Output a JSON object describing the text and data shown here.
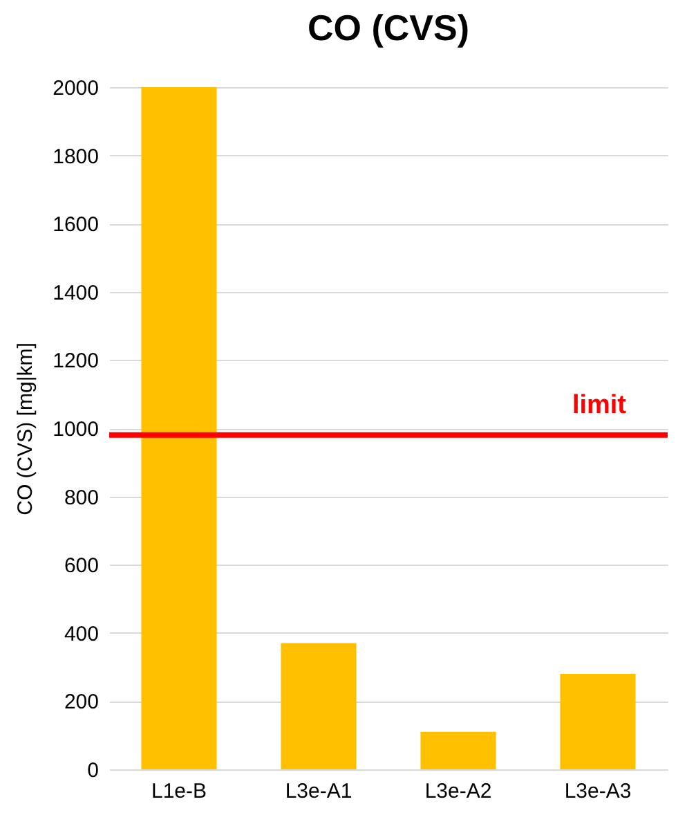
{
  "chart_data": {
    "type": "bar",
    "title": "CO (CVS)",
    "ylabel": "CO (CVS) [mg|km]",
    "categories": [
      "L1e-B",
      "L3e-A1",
      "L3e-A2",
      "L3e-A3"
    ],
    "values": [
      2000,
      370,
      110,
      280
    ],
    "color": "#ffc000",
    "ylim": [
      0,
      2000
    ],
    "yticks": [
      0,
      200,
      400,
      600,
      800,
      1000,
      1200,
      1400,
      1600,
      1800,
      2000
    ],
    "grid": "y",
    "ref_lines": [
      {
        "axis": "y",
        "value": 980,
        "label": "limit",
        "color": "#ff0000"
      }
    ]
  }
}
